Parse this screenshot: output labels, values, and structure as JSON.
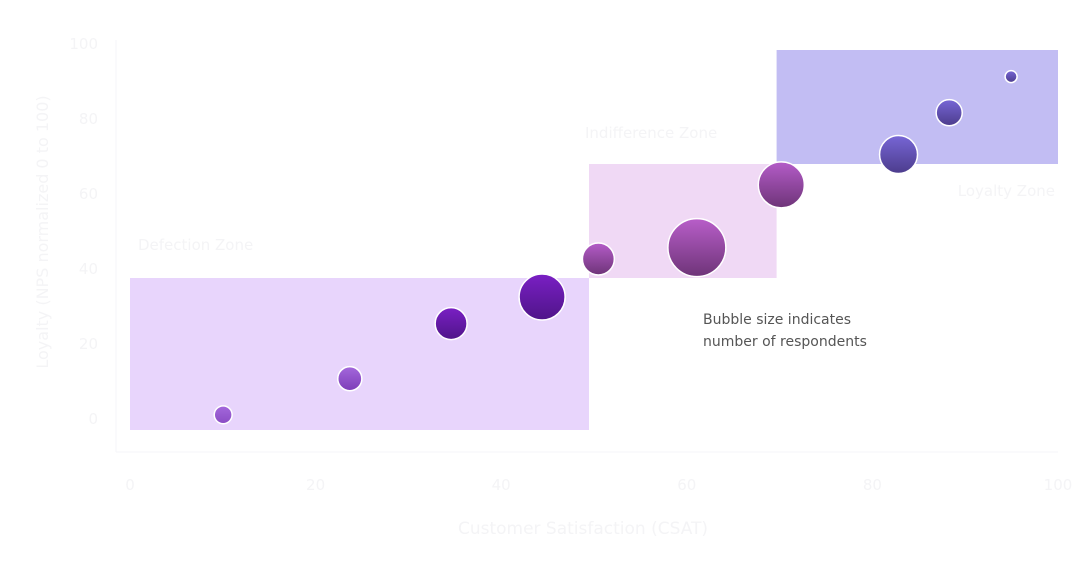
{
  "chart_data": {
    "type": "scatter",
    "variant": "bubble",
    "xlabel": "Customer Satisfaction (CSAT)",
    "ylabel": "Loyalty (NPS normalized 0 to 100)",
    "xlim": [
      0,
      100
    ],
    "ylim": [
      0,
      100
    ],
    "xticks": [
      "0",
      "20",
      "40",
      "60",
      "80",
      "100"
    ],
    "yticks": [
      "0",
      "20",
      "40",
      "60",
      "80",
      "100"
    ],
    "grid": false,
    "annotation": [
      "Bubble size indicates",
      "number of respondents"
    ],
    "zones": [
      {
        "label": "Defection Zone",
        "x": [
          0,
          50
        ],
        "y": [
          0,
          40
        ],
        "color": "#e8d5fc"
      },
      {
        "label": "Indifference Zone",
        "x": [
          50,
          70
        ],
        "y": [
          40,
          70
        ],
        "color": "#f0d9f5"
      },
      {
        "label": "Loyalty Zone",
        "x": [
          70,
          100
        ],
        "y": [
          70,
          100
        ],
        "color": "#c2bdf3"
      }
    ],
    "points": [
      {
        "x": 11,
        "y": 4,
        "respondents": 80,
        "color_top": "#a468dc",
        "color_bottom": "#8a4cc4"
      },
      {
        "x": 24.5,
        "y": 13.5,
        "respondents": 145,
        "color_top": "#a468dc",
        "color_bottom": "#7d3db8"
      },
      {
        "x": 35.3,
        "y": 28,
        "respondents": 255,
        "color_top": "#7a1fc4",
        "color_bottom": "#4f1589"
      },
      {
        "x": 45,
        "y": 35,
        "respondents": 530,
        "color_top": "#7a1fc4",
        "color_bottom": "#4f1589"
      },
      {
        "x": 51,
        "y": 45,
        "respondents": 255,
        "color_top": "#b45cc8",
        "color_bottom": "#6e3478"
      },
      {
        "x": 61.5,
        "y": 48,
        "respondents": 840,
        "color_top": "#b85ec9",
        "color_bottom": "#6e3478"
      },
      {
        "x": 70.5,
        "y": 64.5,
        "respondents": 530,
        "color_top": "#b45cc8",
        "color_bottom": "#6e3478"
      },
      {
        "x": 83,
        "y": 72.5,
        "respondents": 360,
        "color_top": "#7766d6",
        "color_bottom": "#4c3c8c"
      },
      {
        "x": 88.4,
        "y": 83.5,
        "respondents": 170,
        "color_top": "#7766d6",
        "color_bottom": "#4c3c8c"
      },
      {
        "x": 95,
        "y": 93,
        "respondents": 36,
        "color_top": "#7766d6",
        "color_bottom": "#4c3c8c"
      }
    ]
  }
}
